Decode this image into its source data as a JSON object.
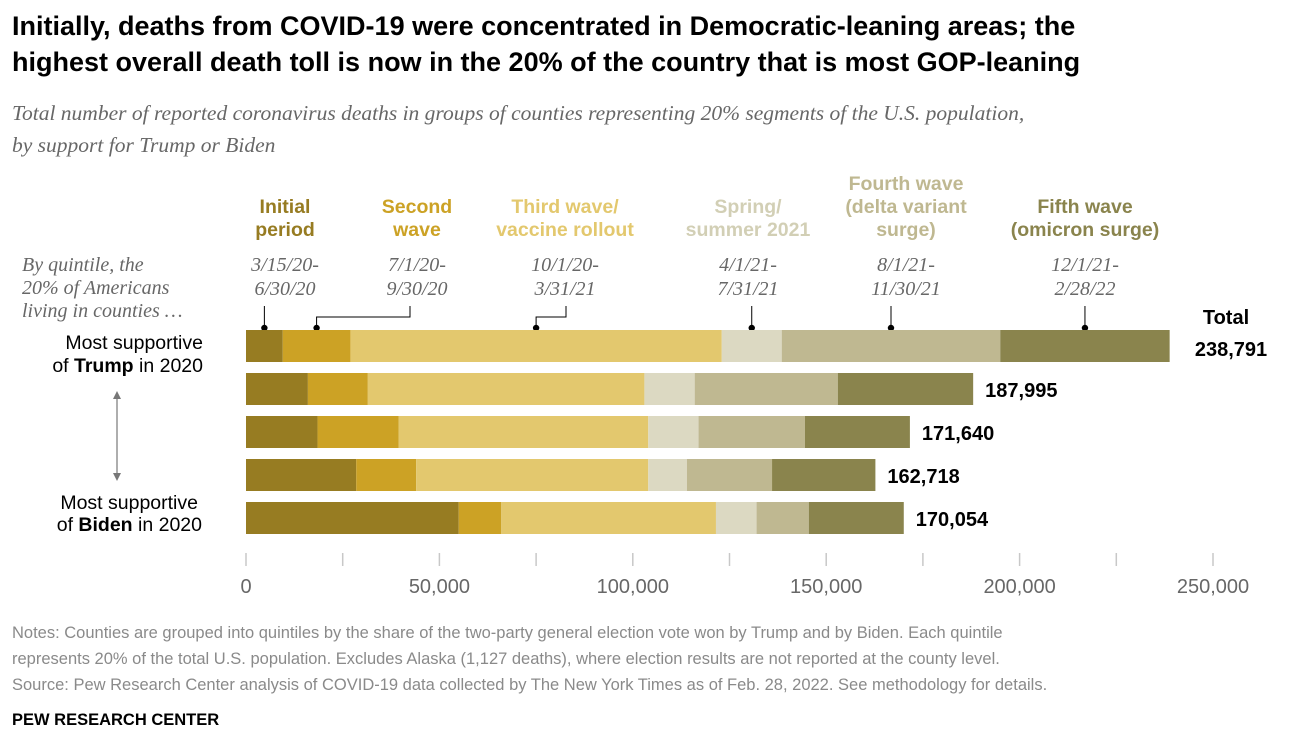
{
  "title_lines": [
    "Initially, deaths from COVID-19 were concentrated in Democratic-leaning areas; the",
    "highest overall death toll is now in the 20% of the country that is most GOP-leaning"
  ],
  "subtitle_lines": [
    "Total number of reported coronavirus deaths in groups of counties representing 20% segments of the U.S. population,",
    "by support for Trump or Biden"
  ],
  "quintile_intro": [
    "By quintile, the",
    "20% of Americans",
    "living in counties …"
  ],
  "row_label_top": {
    "pre": "Most supportive",
    "of": "of ",
    "bold": "Trump",
    "post": " in 2020"
  },
  "row_label_bottom": {
    "pre": "Most supportive",
    "of": "of ",
    "bold": "Biden",
    "post": " in 2020"
  },
  "total_header": "Total",
  "colors": [
    "#977c22",
    "#cca225",
    "#e3c86e",
    "#dcd9c2",
    "#bfb891",
    "#8a844d"
  ],
  "arrow_color": "#777777",
  "chart_data": {
    "type": "bar",
    "orientation": "horizontal",
    "stacked": true,
    "categories": [
      "Most supportive of Trump in 2020",
      "",
      "",
      "",
      "Most supportive of Biden in 2020"
    ],
    "series": [
      {
        "name": "Initial period",
        "label_lines": [
          "Initial",
          "period"
        ],
        "date_lines": [
          "3/15/20-",
          "6/30/20"
        ],
        "values": [
          9500,
          16000,
          18500,
          28500,
          55000
        ]
      },
      {
        "name": "Second wave",
        "label_lines": [
          "Second",
          "wave"
        ],
        "date_lines": [
          "7/1/20-",
          "9/30/20"
        ],
        "values": [
          17500,
          15500,
          21000,
          15500,
          11000
        ]
      },
      {
        "name": "Third wave/ vaccine rollout",
        "label_lines": [
          "Third wave/",
          "vaccine rollout"
        ],
        "date_lines": [
          "10/1/20-",
          "3/31/21"
        ],
        "values": [
          96000,
          71500,
          64500,
          60000,
          55500
        ]
      },
      {
        "name": "Spring/ summer 2021",
        "label_lines": [
          "Spring/",
          "summer 2021"
        ],
        "date_lines": [
          "4/1/21-",
          "7/31/21"
        ],
        "values": [
          15500,
          13000,
          13000,
          10000,
          10500
        ]
      },
      {
        "name": "Fourth wave (delta variant surge)",
        "label_lines": [
          "Fourth wave",
          "(delta variant",
          "surge)"
        ],
        "date_lines": [
          "8/1/21-",
          "11/30/21"
        ],
        "values": [
          56500,
          37000,
          27500,
          22000,
          13500
        ]
      },
      {
        "name": "Fifth wave (omicron surge)",
        "label_lines": [
          "Fifth wave",
          "(omicron surge)"
        ],
        "date_lines": [
          "12/1/21-",
          "2/28/22"
        ],
        "values": [
          43791,
          34995,
          27140,
          26718,
          24554
        ]
      }
    ],
    "totals": [
      "238,791",
      "187,995",
      "171,640",
      "162,718",
      "170,054"
    ],
    "x_ticks": [
      0,
      50000,
      100000,
      150000,
      200000,
      250000
    ],
    "x_tick_labels": [
      "0",
      "50,000",
      "100,000",
      "150,000",
      "200,000",
      "250,000"
    ],
    "xlim": [
      0,
      250000
    ],
    "grid": false
  },
  "notes": [
    "Notes: Counties are grouped into quintiles by the share of the two-party general election vote won by Trump and by Biden. Each quintile",
    "represents 20% of the total U.S. population. Excludes Alaska (1,127 deaths), where election results are not reported at the county level.",
    "Source: Pew Research Center analysis of COVID-19 data collected by The New York Times as of Feb. 28, 2022. See methodology for details."
  ],
  "brand": "PEW RESEARCH CENTER"
}
